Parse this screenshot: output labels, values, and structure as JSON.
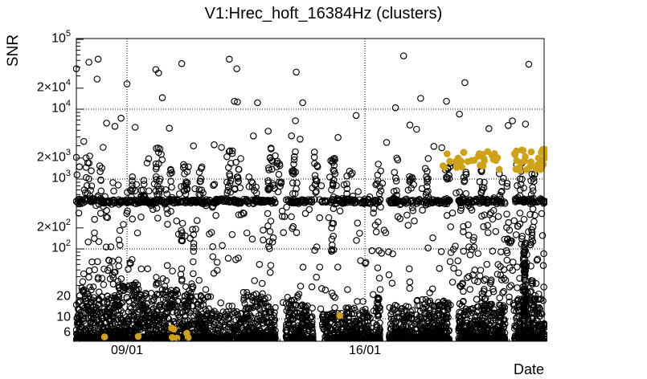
{
  "chart_data": {
    "type": "scatter",
    "title": "V1:Hrec_hoft_16384Hz (clusters)",
    "xlabel": "Date",
    "ylabel": "SNR",
    "y_scale": "log",
    "ylim": [
      4.8,
      100000
    ],
    "xlim_days": [
      -1.49,
      12.27
    ],
    "grid": {
      "style": "dotted",
      "h_values": [
        10,
        100,
        1000,
        10000
      ],
      "v_days": [
        0,
        7
      ]
    },
    "legend": "none",
    "x_ticks": [
      {
        "day": 0,
        "label": "09/01"
      },
      {
        "day": 7,
        "label": "16/01"
      }
    ],
    "y_ticks": [
      {
        "value": 100000,
        "base": "10",
        "exp": "5"
      },
      {
        "value": 20000,
        "base": "2×10",
        "exp": "4"
      },
      {
        "value": 10000,
        "base": "10",
        "exp": "4"
      },
      {
        "value": 2000,
        "base": "2×10",
        "exp": "3"
      },
      {
        "value": 1000,
        "base": "10",
        "exp": "3"
      },
      {
        "value": 200,
        "base": "2×10",
        "exp": "2"
      },
      {
        "value": 100,
        "base": "10",
        "exp": "2"
      },
      {
        "value": 20,
        "base": "20",
        "exp": ""
      },
      {
        "value": 10,
        "base": "10",
        "exp": ""
      },
      {
        "value": 6,
        "base": "6",
        "exp": ""
      }
    ],
    "colors": {
      "black_marker": "#000000",
      "flagged_marker": "#CFA117",
      "grid": "#000000"
    },
    "seed": 20240117,
    "series": {
      "clusters_black": {
        "marker": "open-circle",
        "bottom_segments": [
          [
            -1.5,
            -1.35,
            18,
            42
          ],
          [
            -1.35,
            -0.9,
            33,
            133
          ],
          [
            -0.9,
            -0.26,
            22,
            189
          ],
          [
            -0.26,
            0.1,
            30,
            105
          ],
          [
            0.1,
            0.45,
            36,
            105
          ],
          [
            0.45,
            0.76,
            24,
            91
          ],
          [
            0.76,
            1.16,
            40,
            119
          ],
          [
            1.16,
            1.52,
            26,
            105
          ],
          [
            1.52,
            1.95,
            34,
            126
          ],
          [
            1.95,
            2.47,
            22,
            154
          ],
          [
            2.47,
            3.42,
            13,
            170
          ],
          [
            3.42,
            4.08,
            24,
            196
          ],
          [
            4.08,
            4.37,
            16,
            84
          ],
          [
            4.67,
            5.08,
            24,
            119
          ],
          [
            5.08,
            5.48,
            17,
            119
          ],
          [
            5.74,
            6.41,
            12,
            150
          ],
          [
            6.41,
            6.76,
            15,
            105
          ],
          [
            6.81,
            7.17,
            14,
            105
          ],
          [
            7.24,
            7.45,
            21,
            85
          ],
          [
            7.71,
            8.42,
            16,
            210
          ],
          [
            8.47,
            9.49,
            19,
            300
          ],
          [
            9.75,
            10.25,
            15,
            147
          ],
          [
            10.25,
            11.13,
            17,
            260
          ],
          [
            11.39,
            12.31,
            20,
            273
          ]
        ],
        "band": {
          "snr_log_center": 2.681,
          "snr_log_spread": 0.055,
          "density_per_day": 52
        },
        "band_halo": {
          "count": 130,
          "snr": [
            260,
            900
          ]
        },
        "mid_columns": [
          [
            -1.15,
            12,
            500,
            2200
          ],
          [
            -0.75,
            8,
            500,
            1600
          ],
          [
            0.17,
            8,
            600,
            1500
          ],
          [
            0.55,
            10,
            500,
            2000
          ],
          [
            0.93,
            22,
            600,
            2800
          ],
          [
            1.28,
            8,
            500,
            1500
          ],
          [
            1.71,
            18,
            600,
            2500
          ],
          [
            2.16,
            10,
            500,
            1800
          ],
          [
            3.01,
            16,
            600,
            2600
          ],
          [
            3.27,
            10,
            700,
            2000
          ],
          [
            3.65,
            6,
            500,
            1200
          ],
          [
            4.2,
            16,
            700,
            2800
          ],
          [
            4.48,
            12,
            600,
            2200
          ],
          [
            4.91,
            14,
            600,
            2600
          ],
          [
            5.55,
            14,
            500,
            2500
          ],
          [
            6.05,
            16,
            600,
            2400
          ],
          [
            6.53,
            8,
            500,
            1500
          ],
          [
            7.4,
            8,
            600,
            1800
          ],
          [
            7.9,
            10,
            500,
            2000
          ],
          [
            8.35,
            8,
            600,
            1600
          ],
          [
            8.83,
            12,
            500,
            2200
          ],
          [
            9.44,
            10,
            600,
            1800
          ],
          [
            9.94,
            8,
            500,
            1500
          ],
          [
            10.49,
            8,
            600,
            1500
          ],
          [
            11.01,
            6,
            500,
            1200
          ],
          [
            11.56,
            12,
            500,
            2000
          ],
          [
            11.96,
            10,
            400,
            1500
          ]
        ],
        "low_columns": [
          [
            1.59,
            10,
            30,
            300
          ],
          [
            1.95,
            6,
            20,
            150
          ],
          [
            4.2,
            6,
            30,
            200
          ],
          [
            6.05,
            12,
            20,
            400
          ],
          [
            7.4,
            6,
            15,
            100
          ],
          [
            11.7,
            75,
            9,
            130
          ],
          [
            11.91,
            15,
            15,
            250
          ]
        ],
        "sparse_low": {
          "count": 170,
          "snr": [
            13,
            260
          ]
        },
        "sparse_left": {
          "count": 40,
          "d": [
            -1.5,
            0.3
          ],
          "snr": [
            16,
            70
          ]
        },
        "sparse_right": {
          "count": 110,
          "d": [
            9.5,
            12.27
          ],
          "snr": [
            15,
            420
          ]
        },
        "sparse_high": {
          "count": 26,
          "snr": [
            2800,
            9500
          ]
        },
        "outliers": [
          [
            -1.49,
            38000
          ],
          [
            -1.12,
            47000
          ],
          [
            -0.85,
            52000
          ],
          [
            -0.88,
            27000
          ],
          [
            0.0,
            23000
          ],
          [
            0.85,
            37000
          ],
          [
            0.93,
            33000
          ],
          [
            1.61,
            45000
          ],
          [
            1.04,
            14600
          ],
          [
            3.01,
            52000
          ],
          [
            3.23,
            38000
          ],
          [
            3.16,
            13000
          ],
          [
            3.25,
            12700
          ],
          [
            3.84,
            12400
          ],
          [
            4.98,
            34000
          ],
          [
            5.17,
            12400
          ],
          [
            7.9,
            10500
          ],
          [
            8.14,
            58000
          ],
          [
            8.64,
            14300
          ],
          [
            9.4,
            13000
          ],
          [
            9.94,
            24000
          ],
          [
            9.78,
            8500
          ],
          [
            11.82,
            44000
          ],
          [
            -1.49,
            2050
          ],
          [
            -1.47,
            1150
          ],
          [
            -1.4,
            1500
          ],
          [
            -1.49,
            480
          ],
          [
            -1.45,
            460
          ]
        ]
      },
      "clusters_flagged": {
        "marker": "filled-circle",
        "clusters": [
          {
            "d": [
              9.25,
              10.96
            ],
            "count": 30,
            "snr": [
              1350,
              2500
            ]
          },
          {
            "d": [
              11.39,
              12.31
            ],
            "count": 34,
            "snr": [
              1300,
              2700
            ]
          }
        ],
        "points": [
          [
            -0.66,
            5.5
          ],
          [
            0.33,
            5.6
          ],
          [
            1.31,
            7.4
          ],
          [
            1.38,
            7.1
          ],
          [
            1.33,
            5.4
          ],
          [
            1.47,
            5.3
          ],
          [
            1.76,
            6.2
          ],
          [
            1.8,
            5.4
          ],
          [
            6.26,
            11.1
          ]
        ]
      }
    }
  }
}
